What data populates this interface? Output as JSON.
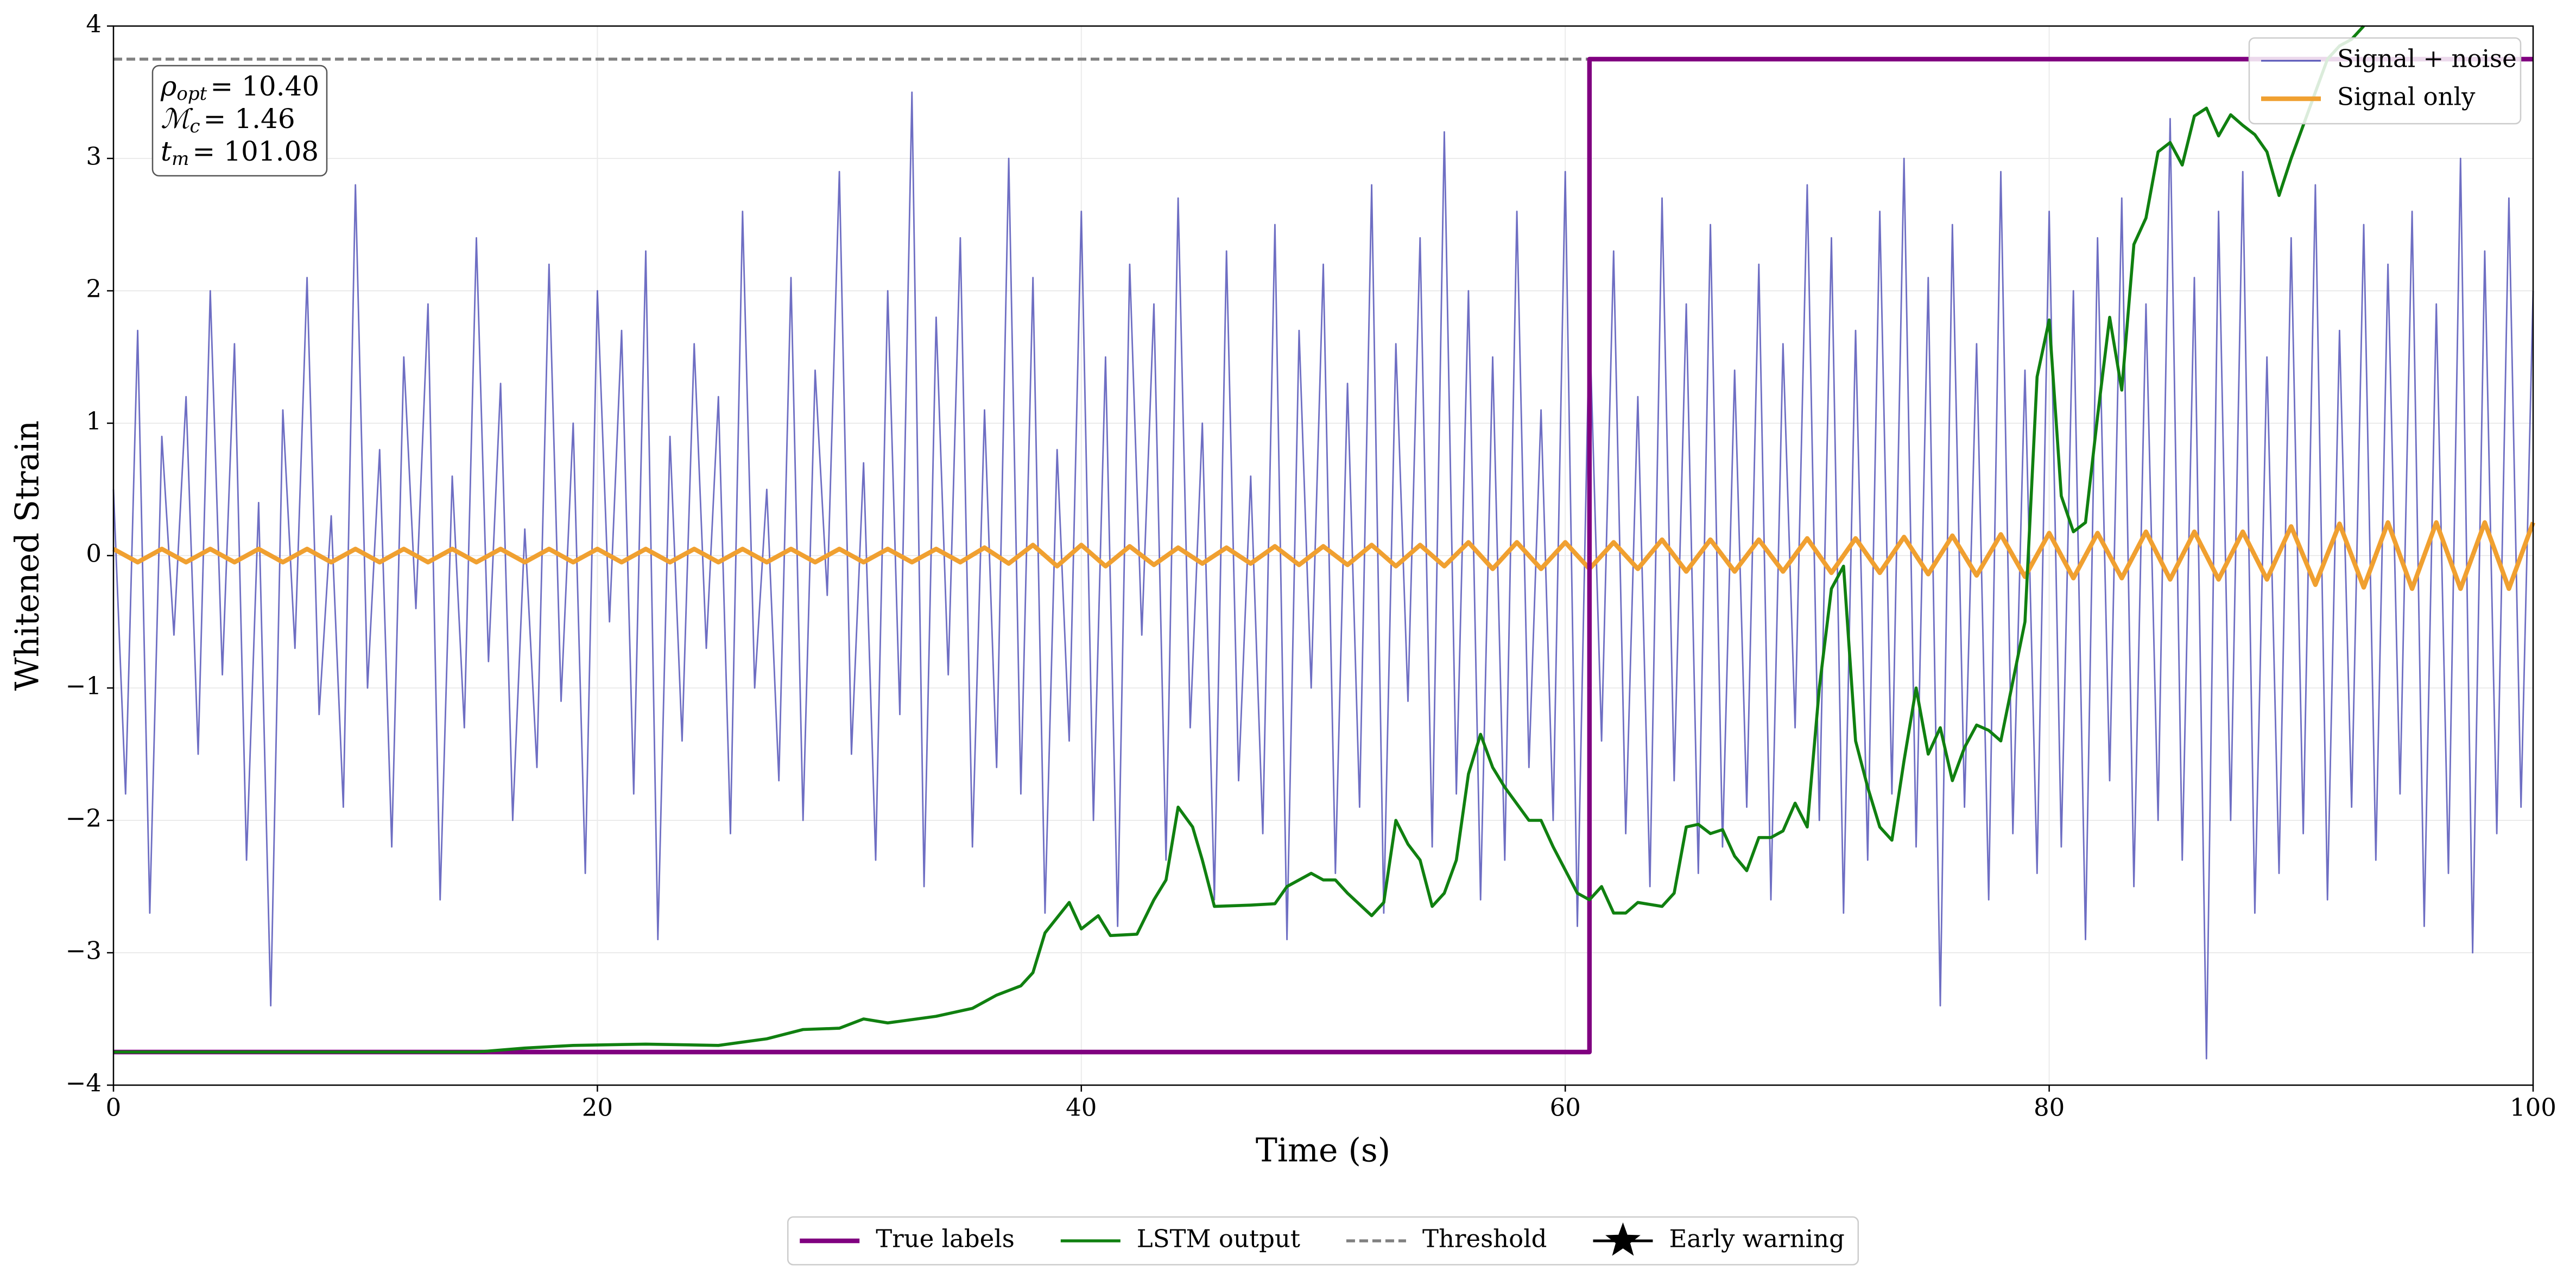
{
  "chart_data": {
    "type": "line",
    "xlabel": "Time (s)",
    "ylabel": "Whitened Strain",
    "xlim": [
      0,
      100
    ],
    "xticks": [
      0,
      20,
      40,
      60,
      80,
      100
    ],
    "ylim": [
      -4,
      4
    ],
    "yticks": [
      {
        "value": -4,
        "label": "−4"
      },
      {
        "value": -3,
        "label": "−3"
      },
      {
        "value": -2,
        "label": "−2"
      },
      {
        "value": -1,
        "label": "−1"
      },
      0,
      1,
      2,
      3,
      4
    ],
    "grid": true,
    "annotations": [
      {
        "symbol": "ρ",
        "sub": "opt",
        "text": "= 10.40"
      },
      {
        "symbol": "ℳ",
        "sub": "c",
        "text": "= 1.46"
      },
      {
        "symbol": "t",
        "sub": "m",
        "text": "= 101.08"
      }
    ],
    "series": [
      {
        "name": "Signal + noise",
        "color": "#5555b8",
        "width": 1,
        "legend": "upper right",
        "x": [
          0,
          0.5,
          1,
          1.5,
          2,
          2.5,
          3,
          3.5,
          4,
          4.5,
          5,
          5.5,
          6,
          6.5,
          7,
          7.5,
          8,
          8.5,
          9,
          9.5,
          10,
          10.5,
          11,
          11.5,
          12,
          12.5,
          13,
          13.5,
          14,
          14.5,
          15,
          15.5,
          16,
          16.5,
          17,
          17.5,
          18,
          18.5,
          19,
          19.5,
          20,
          20.5,
          21,
          21.5,
          22,
          22.5,
          23,
          23.5,
          24,
          24.5,
          25,
          25.5,
          26,
          26.5,
          27,
          27.5,
          28,
          28.5,
          29,
          29.5,
          30,
          30.5,
          31,
          31.5,
          32,
          32.5,
          33,
          33.5,
          34,
          34.5,
          35,
          35.5,
          36,
          36.5,
          37,
          37.5,
          38,
          38.5,
          39,
          39.5,
          40,
          40.5,
          41,
          41.5,
          42,
          42.5,
          43,
          43.5,
          44,
          44.5,
          45,
          45.5,
          46,
          46.5,
          47,
          47.5,
          48,
          48.5,
          49,
          49.5,
          50,
          50.5,
          51,
          51.5,
          52,
          52.5,
          53,
          53.5,
          54,
          54.5,
          55,
          55.5,
          56,
          56.5,
          57,
          57.5,
          58,
          58.5,
          59,
          59.5,
          60,
          60.5,
          61,
          61.5,
          62,
          62.5,
          63,
          63.5,
          64,
          64.5,
          65,
          65.5,
          66,
          66.5,
          67,
          67.5,
          68,
          68.5,
          69,
          69.5,
          70,
          70.5,
          71,
          71.5,
          72,
          72.5,
          73,
          73.5,
          74,
          74.5,
          75,
          75.5,
          76,
          76.5,
          77,
          77.5,
          78,
          78.5,
          79,
          79.5,
          80,
          80.5,
          81,
          81.5,
          82,
          82.5,
          83,
          83.5,
          84,
          84.5,
          85,
          85.5,
          86,
          86.5,
          87,
          87.5,
          88,
          88.5,
          89,
          89.5,
          90,
          90.5,
          91,
          91.5,
          92,
          92.5,
          93,
          93.5,
          94,
          94.5,
          95,
          95.5,
          96,
          96.5,
          97,
          97.5,
          98,
          98.5,
          99,
          99.5,
          100
        ],
        "values": [
          0.5,
          -1.8,
          1.7,
          -2.7,
          0.9,
          -0.6,
          1.2,
          -1.5,
          2.0,
          -0.9,
          1.6,
          -2.3,
          0.4,
          -3.4,
          1.1,
          -0.7,
          2.1,
          -1.2,
          0.3,
          -1.9,
          2.8,
          -1.0,
          0.8,
          -2.2,
          1.5,
          -0.4,
          1.9,
          -2.6,
          0.6,
          -1.3,
          2.4,
          -0.8,
          1.3,
          -2.0,
          0.2,
          -1.6,
          2.2,
          -1.1,
          1.0,
          -2.4,
          2.0,
          -0.5,
          1.7,
          -1.8,
          2.3,
          -2.9,
          0.9,
          -1.4,
          1.6,
          -0.7,
          1.2,
          -2.1,
          2.6,
          -1.0,
          0.5,
          -1.7,
          2.1,
          -2.0,
          1.4,
          -0.3,
          2.9,
          -1.5,
          0.7,
          -2.3,
          2.0,
          -1.2,
          3.5,
          -2.5,
          1.8,
          -0.9,
          2.4,
          -2.2,
          1.1,
          -1.6,
          3.0,
          -1.8,
          2.1,
          -2.7,
          0.8,
          -1.4,
          2.6,
          -2.0,
          1.5,
          -2.8,
          2.2,
          -0.6,
          1.9,
          -2.3,
          2.7,
          -1.3,
          1.0,
          -2.6,
          2.3,
          -1.7,
          0.6,
          -2.1,
          2.5,
          -2.9,
          1.7,
          -1.0,
          2.2,
          -2.4,
          1.3,
          -1.9,
          2.8,
          -2.7,
          1.6,
          -1.1,
          2.4,
          -2.2,
          3.2,
          -1.8,
          2.0,
          -2.6,
          1.5,
          -2.3,
          2.6,
          -1.6,
          1.1,
          -2.0,
          2.9,
          -2.8,
          1.8,
          -1.4,
          2.3,
          -2.1,
          1.2,
          -2.5,
          2.7,
          -1.7,
          1.9,
          -2.4,
          2.5,
          -2.2,
          1.4,
          -1.9,
          2.2,
          -2.6,
          1.6,
          -1.3,
          2.8,
          -2.0,
          2.4,
          -2.7,
          1.7,
          -2.3,
          2.6,
          -1.8,
          3.0,
          -2.2,
          2.1,
          -3.4,
          2.5,
          -1.9,
          1.6,
          -2.6,
          2.9,
          -2.1,
          1.4,
          -2.4,
          2.6,
          -2.2,
          2.0,
          -2.9,
          2.4,
          -1.7,
          2.7,
          -2.5,
          1.9,
          -2.0,
          3.3,
          -2.3,
          2.1,
          -3.8,
          2.6,
          -2.0,
          2.9,
          -2.7,
          1.5,
          -2.4,
          2.4,
          -2.1,
          2.8,
          -2.6,
          1.7,
          -1.9,
          2.5,
          -2.3,
          2.2,
          -1.8,
          2.6,
          -2.8,
          1.9,
          -2.4,
          3.0,
          -3.0,
          2.3,
          -2.1,
          2.7,
          -1.9,
          2.0
        ]
      },
      {
        "name": "Signal only",
        "color": "#f0a030",
        "width": 3,
        "legend": "upper right",
        "x": [
          0,
          1,
          2,
          3,
          4,
          5,
          6,
          7,
          8,
          9,
          10,
          11,
          12,
          13,
          14,
          15,
          16,
          17,
          18,
          19,
          20,
          21,
          22,
          23,
          24,
          25,
          26,
          27,
          28,
          29,
          30,
          31,
          32,
          33,
          34,
          35,
          36,
          37,
          38,
          39,
          40,
          41,
          42,
          43,
          44,
          45,
          46,
          47,
          48,
          49,
          50,
          51,
          52,
          53,
          54,
          55,
          56,
          57,
          58,
          59,
          60,
          61,
          62,
          63,
          64,
          65,
          66,
          67,
          68,
          69,
          70,
          71,
          72,
          73,
          74,
          75,
          76,
          77,
          78,
          79,
          80,
          81,
          82,
          83,
          84,
          85,
          86,
          87,
          88,
          89,
          90,
          91,
          92,
          93,
          94,
          95,
          96,
          97,
          98,
          99,
          100
        ],
        "values": [
          0.05,
          -0.05,
          0.05,
          -0.05,
          0.05,
          -0.05,
          0.05,
          -0.05,
          0.05,
          -0.05,
          0.05,
          -0.05,
          0.05,
          -0.05,
          0.05,
          -0.05,
          0.05,
          -0.05,
          0.05,
          -0.05,
          0.05,
          -0.05,
          0.05,
          -0.05,
          0.05,
          -0.05,
          0.05,
          -0.05,
          0.05,
          -0.05,
          0.05,
          -0.05,
          0.05,
          -0.05,
          0.05,
          -0.05,
          0.06,
          -0.06,
          0.08,
          -0.08,
          0.08,
          -0.08,
          0.07,
          -0.07,
          0.06,
          -0.06,
          0.06,
          -0.06,
          0.07,
          -0.07,
          0.07,
          -0.07,
          0.08,
          -0.08,
          0.08,
          -0.08,
          0.1,
          -0.1,
          0.1,
          -0.1,
          0.1,
          -0.1,
          0.1,
          -0.1,
          0.12,
          -0.12,
          0.12,
          -0.12,
          0.12,
          -0.12,
          0.13,
          -0.13,
          0.13,
          -0.13,
          0.14,
          -0.14,
          0.15,
          -0.15,
          0.16,
          -0.16,
          0.17,
          -0.17,
          0.17,
          -0.17,
          0.18,
          -0.18,
          0.18,
          -0.18,
          0.18,
          -0.18,
          0.22,
          -0.22,
          0.24,
          -0.24,
          0.25,
          -0.25,
          0.25,
          -0.25,
          0.25,
          -0.25,
          0.25
        ]
      },
      {
        "name": "True labels",
        "color": "#800080",
        "width": 3,
        "legend": "below",
        "x": [
          0,
          61,
          61,
          100
        ],
        "values": [
          -3.75,
          -3.75,
          3.75,
          3.75
        ]
      },
      {
        "name": "LSTM output",
        "color": "#108010",
        "width": 2,
        "legend": "below",
        "x": [
          0,
          15,
          17,
          19,
          22,
          25,
          27,
          28.5,
          30,
          31,
          32,
          34,
          35.5,
          36.5,
          37.5,
          38,
          38.5,
          39.5,
          40,
          40.7,
          41.2,
          42.3,
          43,
          43.5,
          44,
          44.6,
          45,
          45.5,
          47,
          48,
          48.5,
          49.5,
          50,
          50.5,
          51,
          52,
          52.5,
          53,
          53.5,
          54,
          54.5,
          55,
          55.5,
          56,
          56.5,
          57,
          57.5,
          58.5,
          59,
          59.5,
          60.5,
          61,
          61.5,
          62,
          62.5,
          63,
          64,
          64.5,
          65,
          65.5,
          66,
          66.5,
          67,
          67.5,
          68,
          68.5,
          69,
          69.5,
          70,
          70.5,
          71,
          71.5,
          72,
          72.5,
          73,
          73.5,
          74,
          74.5,
          75,
          75.5,
          76,
          76.5,
          77,
          77.5,
          78,
          78.5,
          79,
          79.5,
          80,
          80.5,
          81,
          81.5,
          82,
          82.5,
          83,
          83.5,
          84,
          84.5,
          85,
          85.5,
          86,
          86.5,
          87,
          87.5,
          88,
          88.5,
          89,
          89.5,
          90,
          91,
          91.5,
          92,
          92.5,
          93
        ],
        "values": [
          -3.75,
          -3.75,
          -3.72,
          -3.7,
          -3.69,
          -3.7,
          -3.65,
          -3.58,
          -3.57,
          -3.5,
          -3.53,
          -3.48,
          -3.42,
          -3.32,
          -3.25,
          -3.15,
          -2.85,
          -2.62,
          -2.82,
          -2.72,
          -2.87,
          -2.86,
          -2.6,
          -2.45,
          -1.9,
          -2.05,
          -2.3,
          -2.65,
          -2.64,
          -2.63,
          -2.5,
          -2.4,
          -2.45,
          -2.45,
          -2.55,
          -2.72,
          -2.62,
          -2.0,
          -2.18,
          -2.3,
          -2.65,
          -2.55,
          -2.3,
          -1.65,
          -1.35,
          -1.6,
          -1.75,
          -2.0,
          -2.0,
          -2.2,
          -2.55,
          -2.6,
          -2.5,
          -2.7,
          -2.7,
          -2.62,
          -2.65,
          -2.55,
          -2.05,
          -2.03,
          -2.1,
          -2.07,
          -2.27,
          -2.38,
          -2.13,
          -2.13,
          -2.08,
          -1.87,
          -2.05,
          -1.0,
          -0.25,
          -0.08,
          -1.4,
          -1.75,
          -2.05,
          -2.15,
          -1.55,
          -1.0,
          -1.5,
          -1.3,
          -1.7,
          -1.45,
          -1.28,
          -1.32,
          -1.4,
          -0.95,
          -0.5,
          1.35,
          1.78,
          0.45,
          0.18,
          0.25,
          1.05,
          1.8,
          1.25,
          2.35,
          2.55,
          3.05,
          3.12,
          2.95,
          3.32,
          3.38,
          3.17,
          3.33,
          3.25,
          3.18,
          3.05,
          2.72,
          3.0,
          3.5,
          3.75,
          3.85,
          3.9,
          4.0
        ]
      },
      {
        "name": "Threshold",
        "color": "#808080",
        "width": 2,
        "dash": true,
        "legend": "below",
        "x": [
          0,
          100
        ],
        "values": [
          3.75,
          3.75
        ]
      },
      {
        "name": "Early warning",
        "color": "#000000",
        "marker": "star",
        "legend": "below",
        "x": [],
        "values": []
      }
    ]
  }
}
